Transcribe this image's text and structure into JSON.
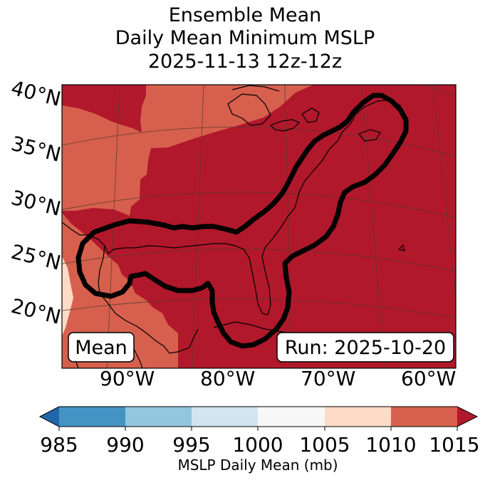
{
  "title": {
    "line1": "Ensemble Mean",
    "line2": "Daily Mean Minimum MSLP",
    "line3": "2025-11-13 12z-12z"
  },
  "map": {
    "lat_labels": [
      "40°N",
      "35°N",
      "30°N",
      "25°N",
      "20°N"
    ],
    "lon_labels": [
      "90°W",
      "80°W",
      "70°W",
      "60°W"
    ],
    "mean_box": "Mean",
    "run_box": "Run: 2025-10-20",
    "fill_colors": {
      "1010-1015": "#d6604d",
      "1015+": "#b2182b",
      "1005-1010": "#fddbc7",
      "contour": "#000000",
      "coastline": "#000000",
      "gridline": "#5a3a30"
    }
  },
  "colorbar": {
    "tick_labels": [
      "985",
      "990",
      "995",
      "1000",
      "1005",
      "1010",
      "1015"
    ],
    "label": "MSLP Daily Mean (mb)",
    "colors": {
      "under": "#2166ac",
      "985-990": "#4393c3",
      "990-995": "#92c5de",
      "995-1000": "#d1e5f0",
      "1000-1005": "#f7f7f7",
      "1005-1010": "#fddbc7",
      "1010-1015": "#d6604d",
      "over": "#b2182b"
    }
  }
}
